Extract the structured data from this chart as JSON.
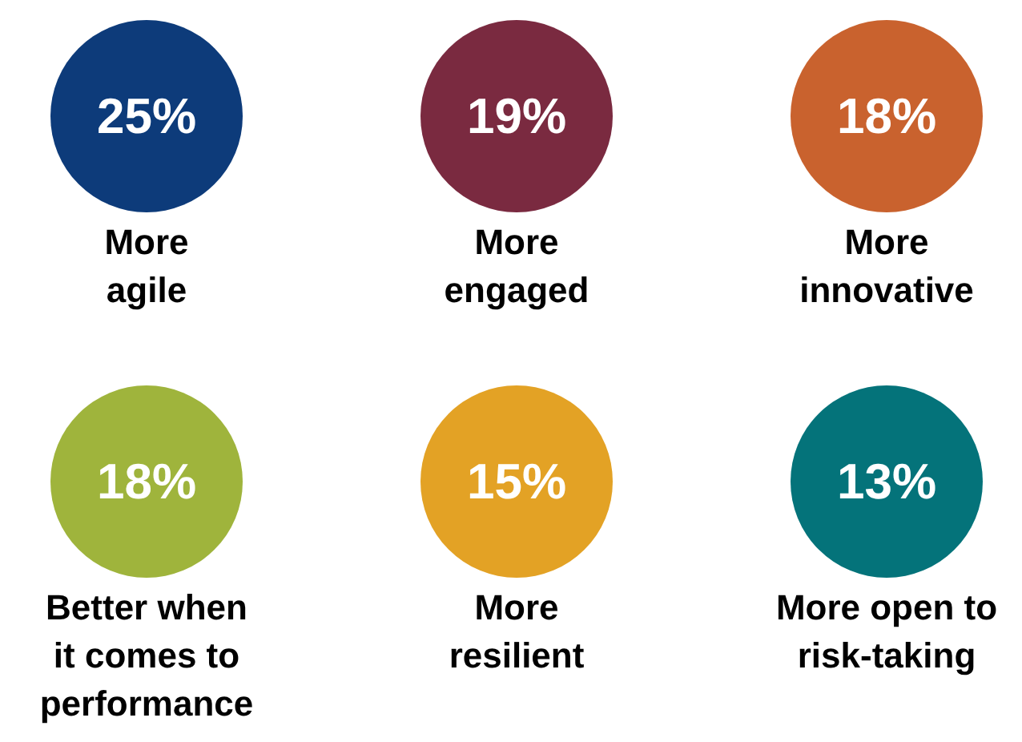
{
  "chart_data": {
    "type": "other",
    "categories": [
      "More\nagile",
      "More\nengaged",
      "More\ninnovative",
      "Better when\nit comes to\nperformance",
      "More\nresilient",
      "More open to\nrisk-taking"
    ],
    "values": [
      25,
      19,
      18,
      18,
      15,
      13
    ],
    "value_labels": [
      "25%",
      "19%",
      "18%",
      "18%",
      "15%",
      "13%"
    ],
    "colors": [
      "#0d3b7a",
      "#7a2a40",
      "#c9622e",
      "#9fb43c",
      "#e3a225",
      "#04737a"
    ]
  }
}
